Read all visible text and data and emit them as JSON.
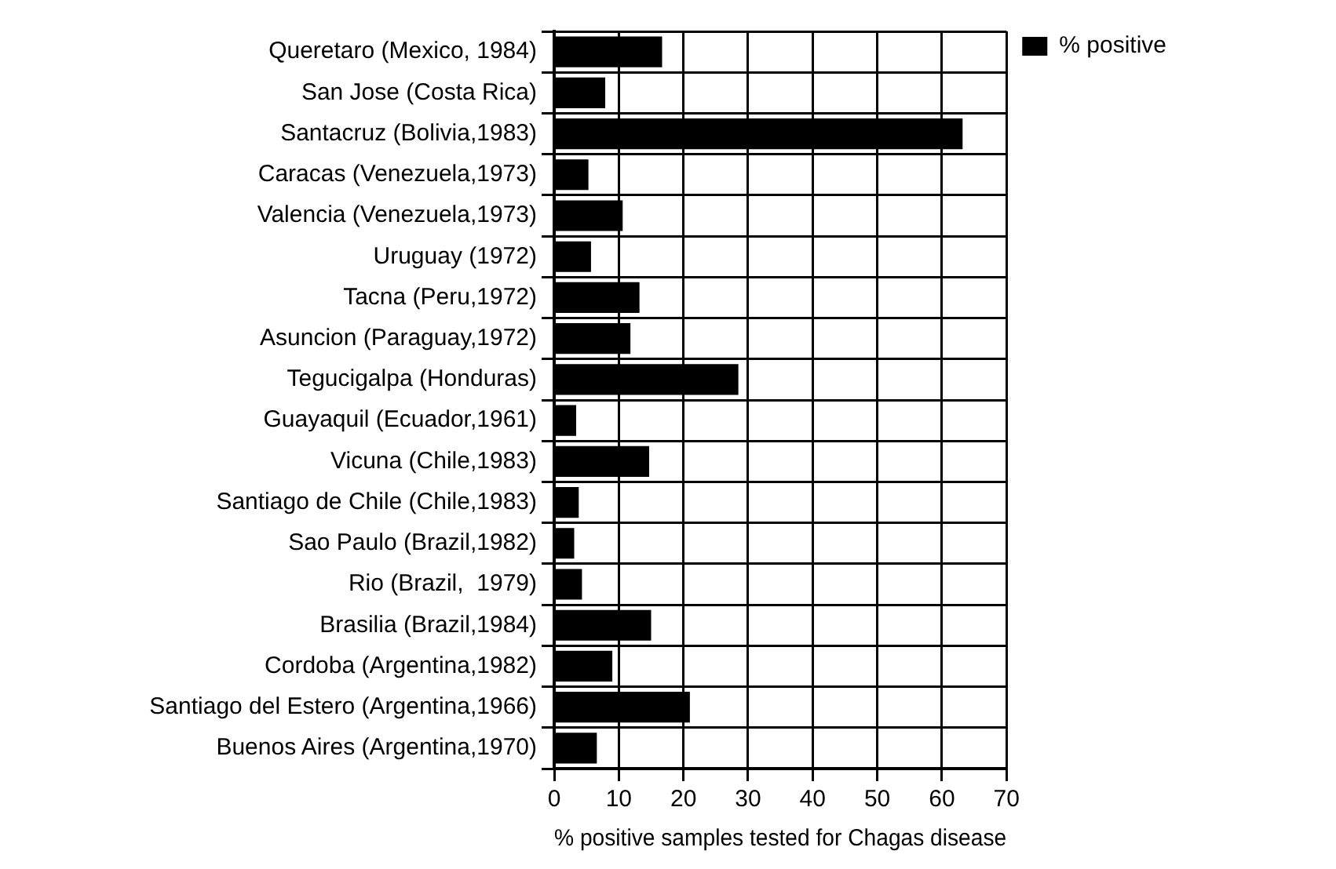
{
  "chart_data": {
    "type": "bar",
    "orientation": "horizontal",
    "xlabel": "% positive samples tested for Chagas disease",
    "categories": [
      "Queretaro (Mexico, 1984)",
      "San Jose (Costa Rica)",
      "Santacruz (Bolivia,1983)",
      "Caracas (Venezuela,1973)",
      "Valencia (Venezuela,1973)",
      "Uruguay (1972)",
      "Tacna (Peru,1972)",
      "Asuncion (Paraguay,1972)",
      "Tegucigalpa (Honduras)",
      "Guayaquil (Ecuador,1961)",
      "Vicuna (Chile,1983)",
      "Santiago de Chile (Chile,1983)",
      "Sao Paulo (Brazil,1982)",
      "Rio (Brazil,  1979)",
      "Brasilia (Brazil,1984)",
      "Cordoba (Argentina,1982)",
      "Santiago del Estero (Argentina,1966)",
      "Buenos Aires (Argentina,1970)"
    ],
    "series": [
      {
        "name": "% positive",
        "color": "#000000",
        "values": [
          16.7,
          7.9,
          63.2,
          5.3,
          10.6,
          5.7,
          13.2,
          11.8,
          28.5,
          3.4,
          14.7,
          3.8,
          3.1,
          4.3,
          15,
          9,
          21,
          6.6
        ]
      }
    ],
    "xlim": [
      0,
      70
    ],
    "xticks": [
      0,
      10,
      20,
      30,
      40,
      50,
      60,
      70
    ],
    "grid": true,
    "legend": "top right"
  }
}
